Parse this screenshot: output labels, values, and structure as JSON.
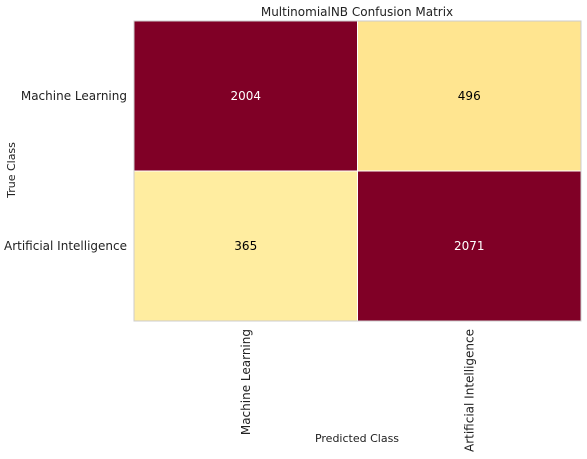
{
  "chart_data": {
    "type": "heatmap",
    "title": "MultinomialNB Confusion Matrix",
    "xlabel": "Predicted Class",
    "ylabel": "True Class",
    "rows": [
      "Machine Learning",
      "Artificial Intelligence"
    ],
    "columns": [
      "Machine Learning",
      "Artificial Intelligence"
    ],
    "values": [
      [
        2004,
        496
      ],
      [
        365,
        2071
      ]
    ],
    "grid": true,
    "colors": {
      "high": "#800026",
      "mid": "#fed976",
      "low": "#ffeda0",
      "text_on_dark": "#ffffff",
      "text_on_light": "#000000"
    }
  }
}
